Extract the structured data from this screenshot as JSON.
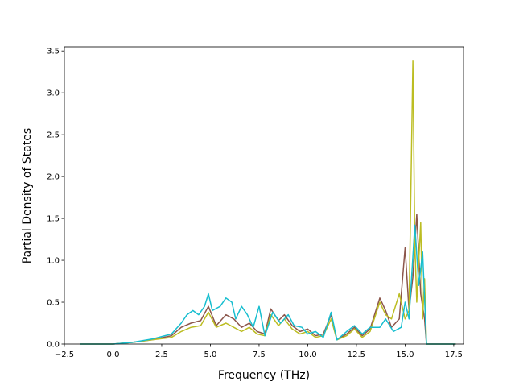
{
  "chart_data": {
    "type": "line",
    "title": "",
    "xlabel": "Frequency (THz)",
    "ylabel": "Partial Density of States",
    "xlim": [
      -2.5,
      18.0
    ],
    "ylim": [
      0.0,
      3.55
    ],
    "xticks": [
      -2.5,
      0.0,
      2.5,
      5.0,
      7.5,
      10.0,
      12.5,
      15.0,
      17.5
    ],
    "xtick_labels": [
      "−2.5",
      "0.0",
      "2.5",
      "5.0",
      "7.5",
      "10.0",
      "12.5",
      "15.0",
      "17.5"
    ],
    "yticks": [
      0.0,
      0.5,
      1.0,
      1.5,
      2.0,
      2.5,
      3.0,
      3.5
    ],
    "ytick_labels": [
      "0.0",
      "0.5",
      "1.0",
      "1.5",
      "2.0",
      "2.5",
      "3.0",
      "3.5"
    ],
    "grid": false,
    "legend": "none",
    "series": [
      {
        "color": "#8c564b",
        "x": [
          -1.7,
          0.0,
          1.0,
          2.0,
          3.0,
          3.5,
          4.0,
          4.5,
          4.9,
          5.3,
          5.8,
          6.2,
          6.6,
          7.0,
          7.4,
          7.8,
          8.1,
          8.5,
          8.8,
          9.2,
          9.6,
          10.0,
          10.4,
          10.8,
          11.2,
          11.5,
          12.0,
          12.4,
          12.8,
          13.2,
          13.7,
          14.0,
          14.3,
          14.7,
          15.0,
          15.2,
          15.4,
          15.6,
          15.8,
          16.0,
          16.1,
          17.6
        ],
        "y": [
          0.0,
          0.0,
          0.02,
          0.05,
          0.1,
          0.2,
          0.25,
          0.28,
          0.45,
          0.22,
          0.35,
          0.3,
          0.2,
          0.25,
          0.15,
          0.12,
          0.42,
          0.28,
          0.35,
          0.22,
          0.15,
          0.18,
          0.1,
          0.12,
          0.35,
          0.05,
          0.12,
          0.2,
          0.1,
          0.18,
          0.55,
          0.4,
          0.2,
          0.3,
          1.15,
          0.4,
          0.8,
          1.55,
          0.6,
          0.3,
          0.0,
          0.0
        ]
      },
      {
        "color": "#bcbd22",
        "x": [
          -1.7,
          0.0,
          1.0,
          2.0,
          3.0,
          3.5,
          4.0,
          4.5,
          4.9,
          5.3,
          5.8,
          6.2,
          6.6,
          7.0,
          7.4,
          7.8,
          8.1,
          8.5,
          8.8,
          9.2,
          9.6,
          10.0,
          10.4,
          10.8,
          11.2,
          11.5,
          12.0,
          12.4,
          12.8,
          13.2,
          13.7,
          14.0,
          14.3,
          14.7,
          15.0,
          15.2,
          15.4,
          15.5,
          15.6,
          15.8,
          15.9,
          16.0,
          16.1,
          17.6
        ],
        "y": [
          0.0,
          0.0,
          0.02,
          0.05,
          0.08,
          0.15,
          0.2,
          0.22,
          0.38,
          0.2,
          0.25,
          0.2,
          0.15,
          0.2,
          0.12,
          0.1,
          0.35,
          0.22,
          0.3,
          0.18,
          0.12,
          0.15,
          0.08,
          0.1,
          0.3,
          0.05,
          0.1,
          0.18,
          0.08,
          0.15,
          0.5,
          0.35,
          0.3,
          0.6,
          0.3,
          0.4,
          3.38,
          1.2,
          0.5,
          1.45,
          0.3,
          0.78,
          0.0,
          0.0
        ]
      },
      {
        "color": "#17becf",
        "x": [
          -1.7,
          0.0,
          1.0,
          2.0,
          3.0,
          3.5,
          3.8,
          4.1,
          4.4,
          4.7,
          4.9,
          5.1,
          5.5,
          5.8,
          6.1,
          6.3,
          6.6,
          6.9,
          7.2,
          7.5,
          7.8,
          8.2,
          8.6,
          9.0,
          9.3,
          9.7,
          10.0,
          10.4,
          10.8,
          11.2,
          11.5,
          12.0,
          12.4,
          12.8,
          13.2,
          13.7,
          14.0,
          14.4,
          14.8,
          15.0,
          15.2,
          15.5,
          15.7,
          15.9,
          16.1,
          17.6
        ],
        "y": [
          0.0,
          0.0,
          0.02,
          0.06,
          0.12,
          0.25,
          0.35,
          0.4,
          0.35,
          0.45,
          0.6,
          0.4,
          0.45,
          0.55,
          0.5,
          0.3,
          0.45,
          0.35,
          0.2,
          0.45,
          0.1,
          0.38,
          0.25,
          0.35,
          0.22,
          0.2,
          0.12,
          0.15,
          0.08,
          0.38,
          0.05,
          0.15,
          0.22,
          0.12,
          0.2,
          0.2,
          0.3,
          0.15,
          0.2,
          0.5,
          0.3,
          1.42,
          0.7,
          1.1,
          0.0,
          0.0
        ]
      }
    ]
  }
}
